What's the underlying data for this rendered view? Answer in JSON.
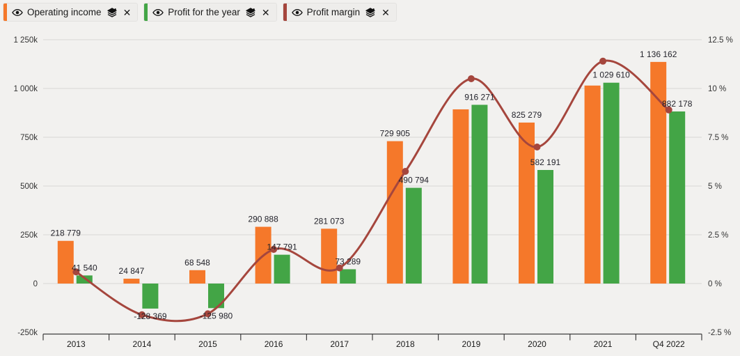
{
  "page": {
    "background": "#f2f1ef"
  },
  "legend": {
    "items": [
      {
        "label": "Operating income",
        "color": "#f5782a"
      },
      {
        "label": "Profit for the year",
        "color": "#43a546"
      },
      {
        "label": "Profit margin",
        "color": "#a5463d"
      }
    ]
  },
  "chart_data": {
    "type": "bar",
    "subtype": "combo-bar-line-dual-axis",
    "title": "",
    "categories": [
      "2013",
      "2014",
      "2015",
      "2016",
      "2017",
      "2018",
      "2019",
      "2020",
      "2021",
      "Q4 2022"
    ],
    "series": [
      {
        "name": "Operating income",
        "type": "bar",
        "axis": "left",
        "color": "#f5782a",
        "values": [
          218779,
          24847,
          68548,
          290888,
          281073,
          729905,
          893000,
          825279,
          1015000,
          1136162
        ],
        "labels": [
          "218 779",
          "24 847",
          "68 548",
          "290 888",
          "281 073",
          "729 905",
          "",
          "825 279",
          "",
          "1 136 162"
        ]
      },
      {
        "name": "Profit for the year",
        "type": "bar",
        "axis": "left",
        "color": "#43a546",
        "values": [
          41540,
          -128369,
          -125980,
          147791,
          73289,
          490794,
          916271,
          582191,
          1029610,
          882178
        ],
        "labels": [
          "41 540",
          "-128 369",
          "-125 980",
          "147 791",
          "73 289",
          "490 794",
          "916 271",
          "582 191",
          "1 029 610",
          "882 178"
        ]
      },
      {
        "name": "Profit margin",
        "type": "line",
        "axis": "right",
        "color": "#a5463d",
        "values": [
          0.6,
          -1.6,
          -1.55,
          1.75,
          0.8,
          5.75,
          10.5,
          7.0,
          11.4,
          8.9
        ]
      }
    ],
    "left_axis": {
      "min": -250000,
      "max": 1250000,
      "tick_values": [
        1250000,
        1000000,
        750000,
        500000,
        250000,
        0,
        -250000
      ],
      "tick_labels": [
        "1 250k",
        "1 000k",
        "750k",
        "500k",
        "250k",
        "0",
        "-250k"
      ]
    },
    "right_axis": {
      "min": -2.5,
      "max": 12.5,
      "tick_values": [
        12.5,
        10,
        7.5,
        5,
        2.5,
        0,
        -2.5
      ],
      "tick_labels": [
        "12.5 %",
        "10 %",
        "7.5 %",
        "5 %",
        "2.5 %",
        "0 %",
        "-2.5 %"
      ]
    },
    "grid": true,
    "legend_position": "top-left",
    "colors": {
      "grid": "#d8d7d5",
      "axis_line": "#3d3d3d",
      "axis_text": "#333333",
      "bar_label_text": "#23232b"
    }
  }
}
